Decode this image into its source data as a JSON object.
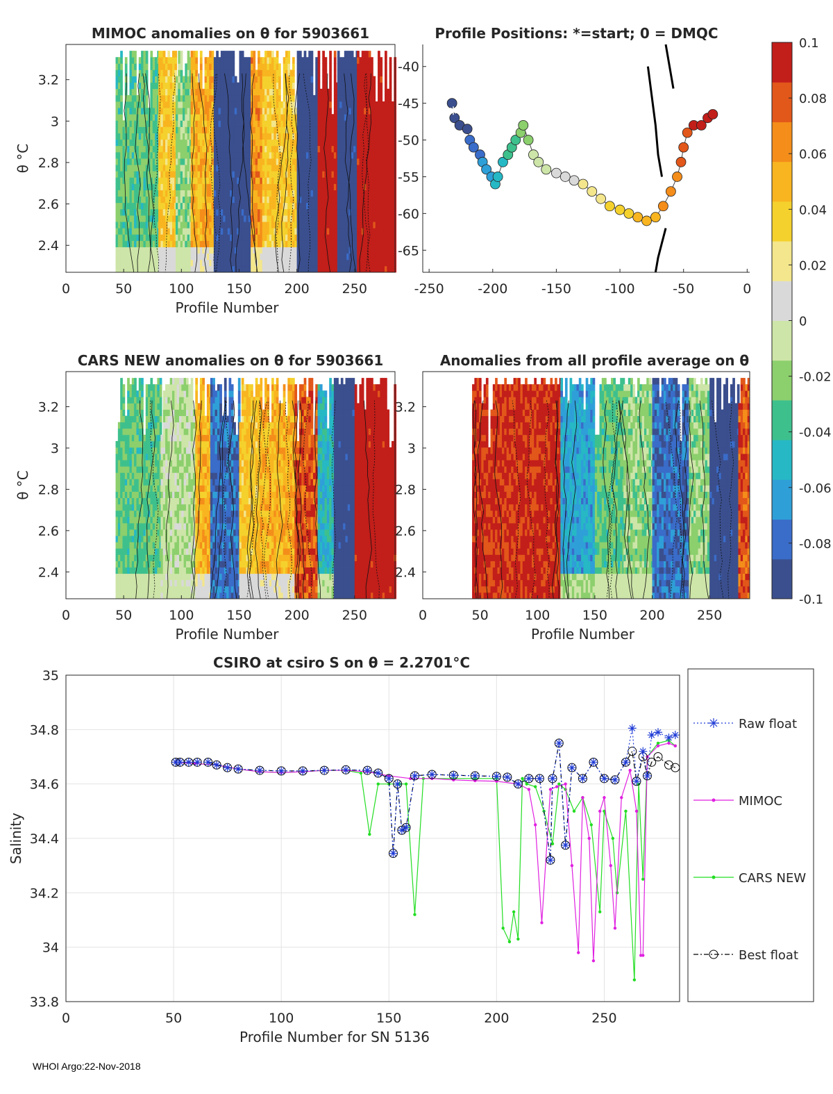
{
  "footer": "WHOI Argo:22-Nov-2018",
  "colormap": [
    "#3b4f8e",
    "#3a6cc9",
    "#2f9fd8",
    "#26b8c4",
    "#3ec08d",
    "#8ccf6d",
    "#cde5a8",
    "#d9d9d9",
    "#f3e68c",
    "#f5d12d",
    "#f8b520",
    "#f48d1a",
    "#e2571a",
    "#c21e1a"
  ],
  "chart_data": [
    {
      "id": "mimoc_anom",
      "type": "heatmap",
      "title": "MIMOC anomalies on θ  for 5903661",
      "xlabel": "Profile Number",
      "ylabel": "θ °C",
      "xlim": [
        0,
        285
      ],
      "ylim": [
        2.27,
        3.37
      ],
      "xticks": [
        "0",
        "50",
        "100",
        "150",
        "200",
        "250"
      ],
      "yticks": [
        "2.4",
        "2.6",
        "2.8",
        "3",
        "3.2"
      ],
      "profile_start": 43,
      "blocks": [
        {
          "x0": 43,
          "x1": 80,
          "value": -0.03
        },
        {
          "x0": 80,
          "x1": 95,
          "value": 0.04
        },
        {
          "x0": 95,
          "x1": 108,
          "value": -0.02
        },
        {
          "x0": 108,
          "x1": 128,
          "value": 0.05
        },
        {
          "x0": 128,
          "x1": 160,
          "value": -0.1
        },
        {
          "x0": 160,
          "x1": 170,
          "value": 0.06
        },
        {
          "x0": 170,
          "x1": 200,
          "value": 0.04
        },
        {
          "x0": 200,
          "x1": 218,
          "value": -0.1
        },
        {
          "x0": 218,
          "x1": 235,
          "value": 0.1
        },
        {
          "x0": 235,
          "x1": 252,
          "value": -0.1
        },
        {
          "x0": 252,
          "x1": 285,
          "value": 0.1
        }
      ]
    },
    {
      "id": "positions",
      "type": "scatter",
      "title": "Profile Positions: *=start; 0 = DMQC",
      "xlim": [
        -255,
        2
      ],
      "ylim": [
        -68,
        -37
      ],
      "xticks": [
        "-250",
        "-200",
        "-150",
        "-100",
        "-50",
        "0"
      ],
      "yticks": [
        "-65",
        "-60",
        "-55",
        "-50",
        "-45",
        "-40"
      ],
      "track": [
        [
          -232,
          -45
        ],
        [
          -230,
          -47
        ],
        [
          -226,
          -48
        ],
        [
          -220,
          -48.5
        ],
        [
          -218,
          -50
        ],
        [
          -215,
          -51
        ],
        [
          -210,
          -52
        ],
        [
          -208,
          -53
        ],
        [
          -205,
          -54
        ],
        [
          -201,
          -55
        ],
        [
          -198,
          -56
        ],
        [
          -196,
          -55
        ],
        [
          -192,
          -53
        ],
        [
          -188,
          -52
        ],
        [
          -185,
          -51
        ],
        [
          -182,
          -50
        ],
        [
          -178,
          -49
        ],
        [
          -176,
          -48
        ],
        [
          -172,
          -50
        ],
        [
          -168,
          -52
        ],
        [
          -164,
          -53
        ],
        [
          -158,
          -54
        ],
        [
          -150,
          -54.5
        ],
        [
          -143,
          -55
        ],
        [
          -136,
          -55.5
        ],
        [
          -129,
          -56
        ],
        [
          -122,
          -57
        ],
        [
          -115,
          -58
        ],
        [
          -108,
          -59
        ],
        [
          -100,
          -59.5
        ],
        [
          -93,
          -60
        ],
        [
          -86,
          -60.5
        ],
        [
          -79,
          -61
        ],
        [
          -72,
          -60.5
        ],
        [
          -66,
          -59
        ],
        [
          -60,
          -57
        ],
        [
          -55,
          -55
        ],
        [
          -52,
          -53
        ],
        [
          -50,
          -51
        ],
        [
          -47,
          -49
        ],
        [
          -42,
          -48
        ],
        [
          -36,
          -48
        ],
        [
          -31,
          -47
        ],
        [
          -27,
          -46.5
        ]
      ],
      "start": [
        -231,
        -46
      ],
      "coast": [
        [
          [
            -78,
            -40
          ],
          [
            -75,
            -44
          ],
          [
            -72,
            -48
          ],
          [
            -70,
            -52
          ],
          [
            -67,
            -55
          ]
        ],
        [
          [
            -72,
            -68
          ],
          [
            -70,
            -66
          ],
          [
            -67,
            -64
          ],
          [
            -64,
            -62
          ]
        ],
        [
          [
            -64,
            -37
          ],
          [
            -61,
            -40
          ],
          [
            -58,
            -43
          ]
        ]
      ]
    },
    {
      "id": "colorbar",
      "type": "heatmap",
      "clim": [
        -0.1,
        0.1
      ],
      "ticks": [
        "0.1",
        "0.08",
        "0.06",
        "0.04",
        "0.02",
        "0",
        "-0.02",
        "-0.04",
        "-0.06",
        "-0.08",
        "-0.1"
      ]
    },
    {
      "id": "cars_anom",
      "type": "heatmap",
      "title": "CARS NEW anomalies on θ for 5903661",
      "xlabel": "Profile Number",
      "ylabel": "θ °C",
      "xlim": [
        0,
        285
      ],
      "ylim": [
        2.27,
        3.37
      ],
      "xticks": [
        "0",
        "50",
        "100",
        "150",
        "200",
        "250"
      ],
      "yticks": [
        "2.4",
        "2.6",
        "2.8",
        "3",
        "3.2"
      ],
      "profile_start": 43,
      "blocks": [
        {
          "x0": 43,
          "x1": 82,
          "value": -0.03
        },
        {
          "x0": 82,
          "x1": 112,
          "value": -0.01
        },
        {
          "x0": 112,
          "x1": 125,
          "value": 0.05
        },
        {
          "x0": 125,
          "x1": 150,
          "value": -0.08
        },
        {
          "x0": 150,
          "x1": 168,
          "value": 0.04
        },
        {
          "x0": 168,
          "x1": 198,
          "value": 0.05
        },
        {
          "x0": 198,
          "x1": 218,
          "value": 0.08
        },
        {
          "x0": 218,
          "x1": 232,
          "value": -0.05
        },
        {
          "x0": 232,
          "x1": 250,
          "value": -0.1
        },
        {
          "x0": 250,
          "x1": 285,
          "value": 0.1
        }
      ]
    },
    {
      "id": "all_avg_anom",
      "type": "heatmap",
      "title": "Anomalies from all profile average on θ",
      "xlabel": "Profile Number",
      "xlim": [
        0,
        285
      ],
      "ylim": [
        2.27,
        3.37
      ],
      "xticks": [
        "0",
        "50",
        "100",
        "150",
        "200",
        "250"
      ],
      "yticks": [
        "2.4",
        "2.6",
        "2.8",
        "3",
        "3.2"
      ],
      "profile_start": 43,
      "blocks": [
        {
          "x0": 43,
          "x1": 120,
          "value": 0.09
        },
        {
          "x0": 120,
          "x1": 150,
          "value": -0.06
        },
        {
          "x0": 150,
          "x1": 175,
          "value": -0.03
        },
        {
          "x0": 175,
          "x1": 200,
          "value": -0.02
        },
        {
          "x0": 200,
          "x1": 232,
          "value": -0.08
        },
        {
          "x0": 232,
          "x1": 250,
          "value": -0.02
        },
        {
          "x0": 250,
          "x1": 275,
          "value": -0.1
        },
        {
          "x0": 275,
          "x1": 285,
          "value": 0.08
        }
      ]
    },
    {
      "id": "salinity",
      "type": "line",
      "title": "CSIRO at csiro S on θ = 2.2701°C",
      "xlabel": "Profile Number for SN 5136",
      "ylabel": "Salinity",
      "xlim": [
        0,
        285
      ],
      "ylim": [
        33.8,
        35
      ],
      "xticks": [
        "0",
        "50",
        "100",
        "150",
        "200",
        "250"
      ],
      "yticks": [
        "33.8",
        "34",
        "34.2",
        "34.4",
        "34.6",
        "34.8",
        "35"
      ],
      "legend": {
        "placement": "right",
        "items": [
          {
            "label": "Raw float",
            "color": "#1f3bd6",
            "marker": "star",
            "style": "dotted"
          },
          {
            "label": "MIMOC",
            "color": "#e020e0",
            "marker": "dot",
            "style": "solid"
          },
          {
            "label": "CARS NEW",
            "color": "#22dd22",
            "marker": "dot",
            "style": "solid"
          },
          {
            "label": "Best float",
            "color": "#000000",
            "marker": "circle",
            "style": "dashdot"
          }
        ]
      },
      "series": [
        {
          "name": "Raw float",
          "x": [
            51,
            53,
            57,
            61,
            66,
            70,
            75,
            80,
            90,
            100,
            110,
            120,
            130,
            140,
            145,
            150,
            152,
            154,
            156,
            158,
            162,
            170,
            180,
            190,
            200,
            205,
            210,
            215,
            220,
            225,
            226,
            229,
            232,
            235,
            240,
            245,
            250,
            255,
            260,
            263,
            265,
            268,
            270,
            272,
            275,
            280,
            283
          ],
          "y": [
            34.68,
            34.68,
            34.68,
            34.68,
            34.68,
            34.67,
            34.66,
            34.655,
            34.65,
            34.648,
            34.648,
            34.65,
            34.652,
            34.65,
            34.64,
            34.62,
            34.345,
            34.6,
            34.43,
            34.44,
            34.63,
            34.635,
            34.632,
            34.63,
            34.628,
            34.625,
            34.6,
            34.62,
            34.62,
            34.32,
            34.62,
            34.75,
            34.375,
            34.66,
            34.62,
            34.68,
            34.62,
            34.615,
            34.68,
            34.805,
            34.61,
            34.72,
            34.63,
            34.78,
            34.79,
            34.77,
            34.78
          ]
        },
        {
          "name": "MIMOC",
          "x": [
            51,
            60,
            70,
            80,
            90,
            100,
            110,
            120,
            130,
            140,
            150,
            160,
            170,
            180,
            190,
            200,
            210,
            215,
            218,
            221,
            225,
            228,
            232,
            235,
            238,
            240,
            243,
            245,
            248,
            250,
            253,
            255,
            258,
            262,
            265,
            267,
            268,
            270,
            275,
            280,
            283
          ],
          "y": [
            34.68,
            34.675,
            34.67,
            34.655,
            34.645,
            34.642,
            34.645,
            34.65,
            34.65,
            34.645,
            34.63,
            34.62,
            34.62,
            34.615,
            34.612,
            34.61,
            34.6,
            34.58,
            34.45,
            34.09,
            34.58,
            34.59,
            34.6,
            34.3,
            33.98,
            34.55,
            34.4,
            33.95,
            34.5,
            34.55,
            34.3,
            34.07,
            34.55,
            34.65,
            34.5,
            33.97,
            33.97,
            34.7,
            34.74,
            34.75,
            34.74
          ]
        },
        {
          "name": "CARS NEW",
          "x": [
            51,
            60,
            70,
            80,
            90,
            100,
            110,
            120,
            130,
            137,
            141,
            145,
            150,
            155,
            158,
            162,
            166,
            170,
            180,
            190,
            200,
            203,
            206,
            208,
            210,
            212,
            214,
            218,
            222,
            226,
            229,
            232,
            236,
            240,
            244,
            248,
            250,
            254,
            256,
            260,
            264,
            266,
            268,
            270,
            275,
            280,
            283
          ],
          "y": [
            34.68,
            34.675,
            34.67,
            34.655,
            34.645,
            34.642,
            34.645,
            34.65,
            34.65,
            34.64,
            34.415,
            34.6,
            34.6,
            34.6,
            34.6,
            34.12,
            34.62,
            34.62,
            34.62,
            34.62,
            34.62,
            34.07,
            34.02,
            34.13,
            34.03,
            34.62,
            34.6,
            34.59,
            34.5,
            34.38,
            34.6,
            34.58,
            34.5,
            34.55,
            34.45,
            34.13,
            34.5,
            34.4,
            34.2,
            34.5,
            33.88,
            34.6,
            34.25,
            34.7,
            34.75,
            34.76,
            34.74
          ]
        },
        {
          "name": "Best float",
          "x": [
            51,
            53,
            57,
            61,
            66,
            70,
            75,
            80,
            90,
            100,
            110,
            120,
            130,
            140,
            145,
            150,
            152,
            154,
            156,
            158,
            162,
            170,
            180,
            190,
            200,
            205,
            210,
            215,
            220,
            225,
            226,
            229,
            232,
            235,
            240,
            245,
            250,
            255,
            260,
            263,
            265,
            268,
            270,
            272,
            275,
            280,
            283
          ],
          "y": [
            34.68,
            34.68,
            34.68,
            34.68,
            34.68,
            34.67,
            34.66,
            34.655,
            34.65,
            34.648,
            34.648,
            34.65,
            34.652,
            34.65,
            34.64,
            34.62,
            34.345,
            34.6,
            34.43,
            34.44,
            34.63,
            34.635,
            34.632,
            34.63,
            34.628,
            34.625,
            34.6,
            34.62,
            34.62,
            34.32,
            34.62,
            34.75,
            34.375,
            34.66,
            34.62,
            34.68,
            34.62,
            34.615,
            34.68,
            34.72,
            34.61,
            34.7,
            34.63,
            34.68,
            34.7,
            34.67,
            34.66
          ]
        }
      ]
    }
  ]
}
